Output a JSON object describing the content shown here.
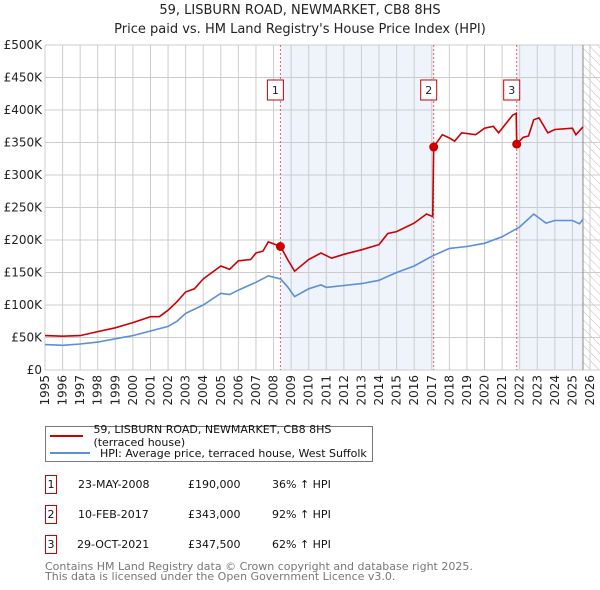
{
  "title_line1": "59, LISBURN ROAD, NEWMARKET, CB8 8HS",
  "title_line2": "Price paid vs. HM Land Registry's House Price Index (HPI)",
  "colors": {
    "property": "#cc0000",
    "hpi": "#5b8fd6",
    "shade": "#eef3fc",
    "grid": "#cccccc"
  },
  "chart_data": {
    "type": "line",
    "title": "Price paid vs. HM Land Registry's House Price Index (HPI)",
    "xlim": [
      1995,
      2026
    ],
    "ylim": [
      0,
      500000
    ],
    "x_ticks": [
      "1995",
      "1996",
      "1997",
      "1998",
      "1999",
      "2000",
      "2001",
      "2002",
      "2003",
      "2004",
      "2005",
      "2006",
      "2007",
      "2008",
      "2009",
      "2010",
      "2011",
      "2012",
      "2013",
      "2014",
      "2015",
      "2016",
      "2017",
      "2018",
      "2019",
      "2020",
      "2021",
      "2022",
      "2023",
      "2024",
      "2025",
      "2026"
    ],
    "y_ticks": [
      {
        "v": 0,
        "label": "£0"
      },
      {
        "v": 50000,
        "label": "£50K"
      },
      {
        "v": 100000,
        "label": "£100K"
      },
      {
        "v": 150000,
        "label": "£150K"
      },
      {
        "v": 200000,
        "label": "£200K"
      },
      {
        "v": 250000,
        "label": "£250K"
      },
      {
        "v": 300000,
        "label": "£300K"
      },
      {
        "v": 350000,
        "label": "£350K"
      },
      {
        "v": 400000,
        "label": "£400K"
      },
      {
        "v": 450000,
        "label": "£450K"
      },
      {
        "v": 500000,
        "label": "£500K"
      }
    ],
    "grid": true,
    "series": [
      {
        "name": "59, LISBURN ROAD, NEWMARKET, CB8 8HS (terraced house)",
        "color": "#cc0000",
        "points": [
          [
            1995,
            53000
          ],
          [
            1996,
            52000
          ],
          [
            1997,
            53000
          ],
          [
            1998,
            59000
          ],
          [
            1999,
            65000
          ],
          [
            2000,
            73000
          ],
          [
            2001,
            82000
          ],
          [
            2001.5,
            82000
          ],
          [
            2002,
            92000
          ],
          [
            2002.5,
            105000
          ],
          [
            2003,
            120000
          ],
          [
            2003.5,
            125000
          ],
          [
            2004,
            140000
          ],
          [
            2005,
            160000
          ],
          [
            2005.5,
            155000
          ],
          [
            2006,
            168000
          ],
          [
            2006.7,
            170000
          ],
          [
            2007,
            180000
          ],
          [
            2007.4,
            183000
          ],
          [
            2007.7,
            197000
          ],
          [
            2008.4,
            190000
          ],
          [
            2008.8,
            170000
          ],
          [
            2009.2,
            152000
          ],
          [
            2010,
            170000
          ],
          [
            2010.7,
            180000
          ],
          [
            2011.3,
            172000
          ],
          [
            2012,
            178000
          ],
          [
            2013,
            185000
          ],
          [
            2014,
            193000
          ],
          [
            2014.5,
            210000
          ],
          [
            2015,
            213000
          ],
          [
            2016,
            226000
          ],
          [
            2016.7,
            240000
          ],
          [
            2017.05,
            236000
          ],
          [
            2017.11,
            343000
          ],
          [
            2017.6,
            362000
          ],
          [
            2018,
            357000
          ],
          [
            2018.3,
            352000
          ],
          [
            2018.7,
            365000
          ],
          [
            2019.5,
            362000
          ],
          [
            2020,
            372000
          ],
          [
            2020.5,
            375000
          ],
          [
            2020.8,
            365000
          ],
          [
            2021.3,
            382000
          ],
          [
            2021.6,
            392000
          ],
          [
            2021.8,
            395000
          ],
          [
            2021.83,
            347500
          ],
          [
            2022.2,
            358000
          ],
          [
            2022.5,
            360000
          ],
          [
            2022.8,
            385000
          ],
          [
            2023.1,
            388000
          ],
          [
            2023.6,
            365000
          ],
          [
            2024,
            370000
          ],
          [
            2025,
            372000
          ],
          [
            2025.2,
            362000
          ],
          [
            2025.6,
            374000
          ]
        ]
      },
      {
        "name": "HPI: Average price, terraced house, West Suffolk",
        "color": "#5b8fd6",
        "points": [
          [
            1995,
            39000
          ],
          [
            1996,
            38000
          ],
          [
            1997,
            40000
          ],
          [
            1998,
            43000
          ],
          [
            1999,
            48000
          ],
          [
            2000,
            53000
          ],
          [
            2001,
            60000
          ],
          [
            2002,
            67000
          ],
          [
            2002.5,
            75000
          ],
          [
            2003,
            87000
          ],
          [
            2004,
            100000
          ],
          [
            2005,
            118000
          ],
          [
            2005.5,
            116000
          ],
          [
            2006,
            123000
          ],
          [
            2007,
            135000
          ],
          [
            2007.7,
            145000
          ],
          [
            2008.4,
            140000
          ],
          [
            2008.8,
            128000
          ],
          [
            2009.2,
            113000
          ],
          [
            2010,
            125000
          ],
          [
            2010.7,
            131000
          ],
          [
            2011,
            127000
          ],
          [
            2012,
            130000
          ],
          [
            2013,
            133000
          ],
          [
            2014,
            138000
          ],
          [
            2015,
            150000
          ],
          [
            2016,
            160000
          ],
          [
            2017,
            175000
          ],
          [
            2018,
            187000
          ],
          [
            2019,
            190000
          ],
          [
            2020,
            195000
          ],
          [
            2021,
            205000
          ],
          [
            2022,
            220000
          ],
          [
            2022.8,
            240000
          ],
          [
            2023.5,
            226000
          ],
          [
            2024,
            230000
          ],
          [
            2025,
            230000
          ],
          [
            2025.4,
            225000
          ],
          [
            2025.6,
            232000
          ]
        ]
      }
    ],
    "sales": [
      {
        "label": "1",
        "x": 2008.39,
        "price": 190000
      },
      {
        "label": "2",
        "x": 2017.11,
        "price": 343000
      },
      {
        "label": "3",
        "x": 2021.83,
        "price": 347500
      }
    ],
    "data_end": 2025.6,
    "legend_position": "below"
  },
  "legend": {
    "property": "59, LISBURN ROAD, NEWMARKET, CB8 8HS (terraced house)",
    "hpi": "HPI: Average price, terraced house, West Suffolk"
  },
  "transactions": [
    {
      "num": "1",
      "date": "23-MAY-2008",
      "price": "£190,000",
      "hpi": "36% ↑ HPI"
    },
    {
      "num": "2",
      "date": "10-FEB-2017",
      "price": "£343,000",
      "hpi": "92% ↑ HPI"
    },
    {
      "num": "3",
      "date": "29-OCT-2021",
      "price": "£347,500",
      "hpi": "62% ↑ HPI"
    }
  ],
  "footer": {
    "line1": "Contains HM Land Registry data © Crown copyright and database right 2025.",
    "line2": "This data is licensed under the Open Government Licence v3.0."
  }
}
